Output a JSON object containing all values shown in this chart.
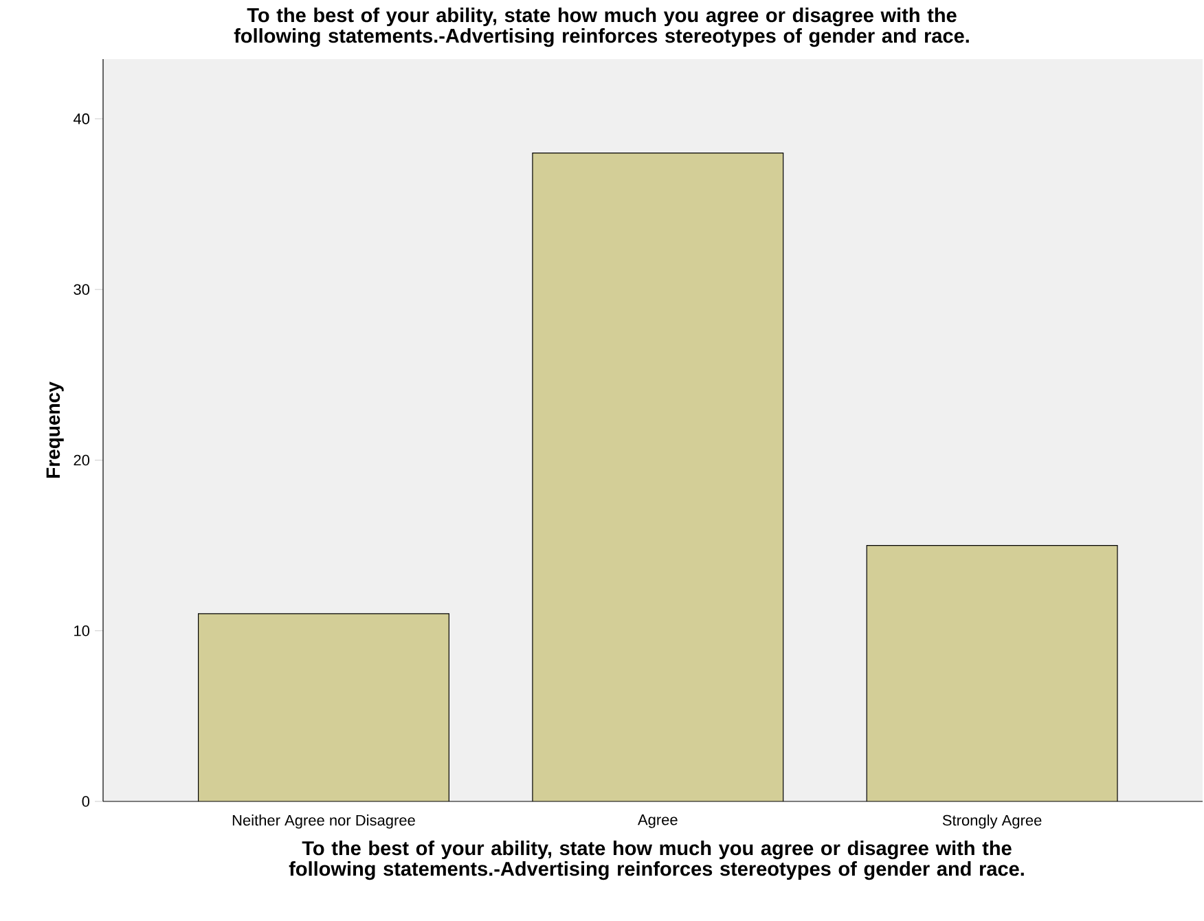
{
  "chart_data": {
    "type": "bar",
    "title": "To the best of your ability, state how much you agree or disagree with the following statements.-Advertising reinforces stereotypes of gender and race.",
    "xlabel": "To the best of your ability, state how much you agree or disagree with the following statements.-Advertising reinforces stereotypes of gender and race.",
    "ylabel": "Frequency",
    "categories": [
      "Neither Agree nor Disagree",
      "Agree",
      "Strongly Agree"
    ],
    "values": [
      11,
      38,
      15
    ],
    "color": "#d3ce97",
    "ylim": [
      0,
      43.5
    ],
    "yticks": [
      0,
      10,
      20,
      30,
      40
    ]
  }
}
